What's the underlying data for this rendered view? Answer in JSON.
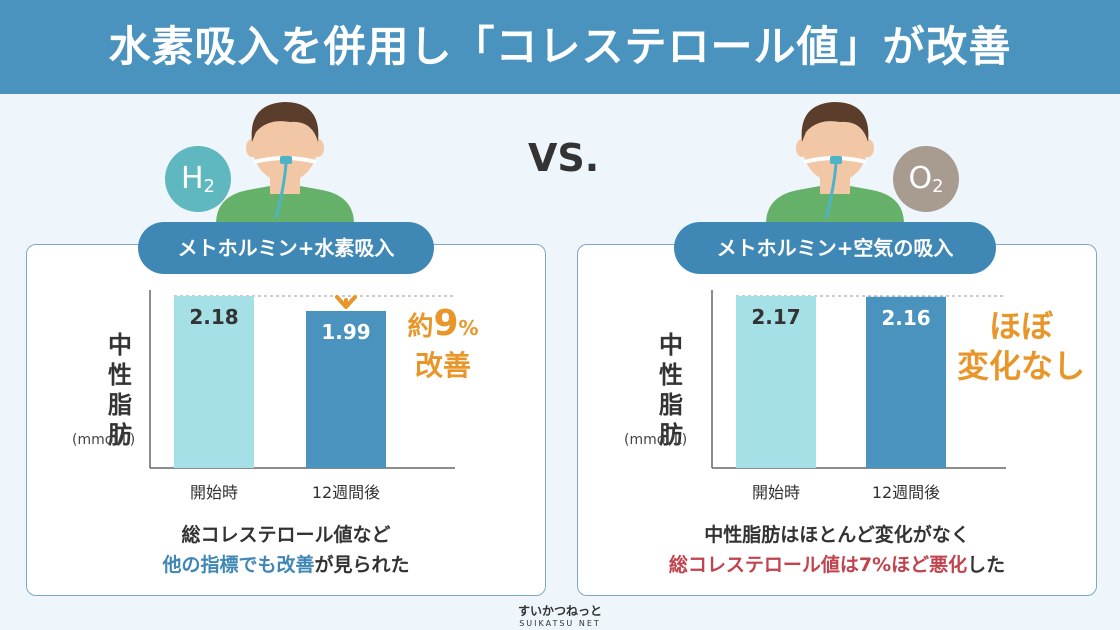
{
  "title": "水素吸入を併用し「コレステロール値」が改善",
  "vs": "VS.",
  "left": {
    "badge_main": "H",
    "badge_sub": "2",
    "pill": "メトホルミン+水素吸入",
    "ylabel_chars": [
      "中",
      "性",
      "脂",
      "肪"
    ],
    "yunit": "(mmol/L)",
    "result_prefix": "約",
    "result_num": "9",
    "result_pct": "%",
    "result_line2": "改善",
    "caption_line1": "総コレステロール値など",
    "caption_hl": "他の指標でも改善",
    "caption_tail": "が見られた"
  },
  "right": {
    "badge_main": "O",
    "badge_sub": "2",
    "pill": "メトホルミン+空気の吸入",
    "ylabel_chars": [
      "中",
      "性",
      "脂",
      "肪"
    ],
    "yunit": "(mmol/L)",
    "result_line1": "ほぼ",
    "result_line2": "変化なし",
    "caption_line1": "中性脂肪はほとんど変化がなく",
    "caption_hl": "総コレステロール値は7%ほど悪化",
    "caption_tail": "した"
  },
  "brand": {
    "jp": "すいかつねっと",
    "en": "SUIKATSU NET"
  },
  "colors": {
    "banner": "#4a93bf",
    "bar_start": "#a6e0e7",
    "bar_end": "#4a93bf",
    "accent": "#e8962a",
    "red": "#c0434d"
  },
  "chart_data": [
    {
      "type": "bar",
      "categories": [
        "開始時",
        "12週間後"
      ],
      "values": [
        2.18,
        1.99
      ],
      "ylabel": "中性脂肪 (mmol/L)",
      "ylim": [
        0,
        2.18
      ],
      "annotation": "約9%改善"
    },
    {
      "type": "bar",
      "categories": [
        "開始時",
        "12週間後"
      ],
      "values": [
        2.17,
        2.16
      ],
      "ylabel": "中性脂肪 (mmol/L)",
      "ylim": [
        0,
        2.17
      ],
      "annotation": "ほぼ変化なし"
    }
  ]
}
